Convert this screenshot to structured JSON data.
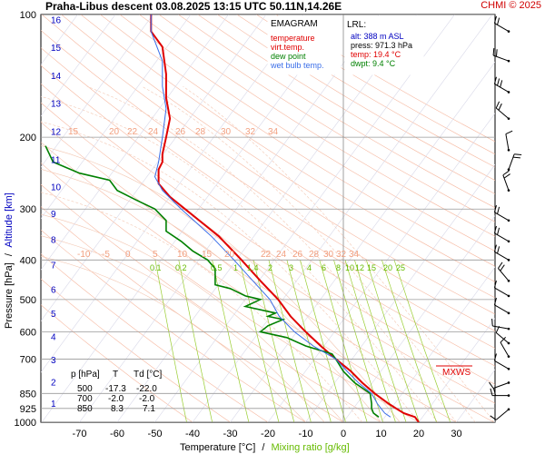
{
  "header": {
    "title": "Praha-Libus   descent   03.08.2025 13:15 UTC   50.11N,14.26E",
    "credit": "CHMI © 2025"
  },
  "legend": {
    "title": "EMAGRAM",
    "items": [
      {
        "label": "temperature",
        "color": "#e00000"
      },
      {
        "label": "virt.temp.",
        "color": "#e00000"
      },
      {
        "label": "dew point",
        "color": "#008000"
      },
      {
        "label": "wet bulb temp.",
        "color": "#3a6ee8"
      }
    ]
  },
  "lrl": {
    "title": "LRL:",
    "lines": [
      {
        "text": "alt: 388 m ASL",
        "color": "#0000c0"
      },
      {
        "text": "press: 971.3 hPa",
        "color": "#000000"
      },
      {
        "text": "temp: 19.4 °C",
        "color": "#e00000"
      },
      {
        "text": "dwpt: 9.4 °C",
        "color": "#008000"
      }
    ]
  },
  "table": {
    "headers": [
      "p [hPa]",
      "T",
      "Td [°C]"
    ],
    "rows": [
      [
        "500",
        "-17.3",
        "-22.0"
      ],
      [
        "700",
        "-2.0",
        "-2.0"
      ],
      [
        "850",
        "8.3",
        "7.1"
      ]
    ]
  },
  "axes": {
    "y_label_a": "Pressure [hPa]",
    "y_label_sep": "/",
    "y_label_b": "Altitude [km]",
    "x_label_a": "Temperature [°C]",
    "x_label_sep": "/",
    "x_label_b": "Mixing ratio [g/kg]"
  },
  "mxws_label": "MXWS",
  "chart_data": {
    "type": "line",
    "y_scale": "log-pressure",
    "ylim": [
      1000,
      100
    ],
    "xlim": [
      -80,
      40
    ],
    "x_ticks": [
      -70,
      -60,
      -50,
      -40,
      -30,
      -20,
      -10,
      0,
      10,
      20,
      30
    ],
    "pressure_ticks": [
      100,
      200,
      300,
      400,
      500,
      600,
      700,
      850,
      925,
      1000
    ],
    "altitude_km_ticks": [
      1,
      2,
      3,
      4,
      5,
      6,
      7,
      8,
      9,
      10,
      11,
      12,
      13,
      14,
      15,
      16
    ],
    "theta_labels_upper": [
      "15",
      "20",
      "22",
      "24",
      "26",
      "28",
      "30",
      "32",
      "34"
    ],
    "theta_labels_lower": [
      "-10",
      "-5",
      "0",
      "5",
      "10",
      "15",
      "20",
      "22",
      "24",
      "26",
      "28",
      "30",
      "32",
      "34"
    ],
    "mixing_ratio_labels": [
      "0.1",
      "0.2",
      "0.5",
      "1",
      "1.4",
      "2",
      "3",
      "4",
      "6",
      "8",
      "10",
      "12",
      "15",
      "20",
      "25"
    ],
    "series": [
      {
        "name": "temperature",
        "color": "#e00000",
        "points": [
          [
            1000,
            20
          ],
          [
            971,
            19
          ],
          [
            950,
            16
          ],
          [
            925,
            14
          ],
          [
            900,
            12
          ],
          [
            850,
            8.3
          ],
          [
            800,
            5
          ],
          [
            750,
            2
          ],
          [
            700,
            -2
          ],
          [
            650,
            -6
          ],
          [
            600,
            -10
          ],
          [
            550,
            -14
          ],
          [
            500,
            -17.3
          ],
          [
            450,
            -22
          ],
          [
            400,
            -27
          ],
          [
            350,
            -33
          ],
          [
            300,
            -42
          ],
          [
            280,
            -46
          ],
          [
            260,
            -49
          ],
          [
            240,
            -49
          ],
          [
            230,
            -48
          ],
          [
            220,
            -48
          ],
          [
            200,
            -47
          ],
          [
            180,
            -46
          ],
          [
            160,
            -47
          ],
          [
            150,
            -47
          ],
          [
            140,
            -47
          ],
          [
            120,
            -48
          ],
          [
            110,
            -51
          ],
          [
            100,
            -51
          ]
        ]
      },
      {
        "name": "dew point",
        "color": "#008000",
        "points": [
          [
            971,
            9.4
          ],
          [
            950,
            8
          ],
          [
            925,
            7.5
          ],
          [
            900,
            7.5
          ],
          [
            850,
            7.1
          ],
          [
            800,
            3
          ],
          [
            750,
            0
          ],
          [
            700,
            -2
          ],
          [
            680,
            -3
          ],
          [
            650,
            -10
          ],
          [
            620,
            -15
          ],
          [
            600,
            -22
          ],
          [
            580,
            -20
          ],
          [
            560,
            -16
          ],
          [
            550,
            -20
          ],
          [
            540,
            -18
          ],
          [
            520,
            -26
          ],
          [
            500,
            -22
          ],
          [
            490,
            -26
          ],
          [
            470,
            -30
          ],
          [
            460,
            -34
          ],
          [
            440,
            -34
          ],
          [
            420,
            -34
          ],
          [
            400,
            -36
          ],
          [
            380,
            -40
          ],
          [
            360,
            -43
          ],
          [
            340,
            -47
          ],
          [
            320,
            -47
          ],
          [
            300,
            -50
          ],
          [
            285,
            -55
          ],
          [
            270,
            -60
          ],
          [
            255,
            -62
          ],
          [
            245,
            -70
          ],
          [
            230,
            -77
          ],
          [
            210,
            -79
          ]
        ]
      },
      {
        "name": "wet bulb temp.",
        "color": "#3a6ee8",
        "points": [
          [
            971,
            12.5
          ],
          [
            950,
            11
          ],
          [
            925,
            10
          ],
          [
            900,
            9
          ],
          [
            850,
            7.5
          ],
          [
            800,
            4
          ],
          [
            750,
            1
          ],
          [
            700,
            -2
          ],
          [
            650,
            -8
          ],
          [
            600,
            -13
          ],
          [
            550,
            -17
          ],
          [
            500,
            -19.5
          ],
          [
            450,
            -24
          ],
          [
            400,
            -29
          ],
          [
            350,
            -35
          ],
          [
            300,
            -43
          ],
          [
            270,
            -48
          ],
          [
            250,
            -50
          ],
          [
            230,
            -49
          ],
          [
            200,
            -48
          ],
          [
            170,
            -47
          ],
          [
            150,
            -48
          ],
          [
            130,
            -48
          ],
          [
            110,
            -51
          ],
          [
            100,
            -51
          ]
        ]
      }
    ],
    "wind_barbs": [
      {
        "p": 110,
        "dir": 300,
        "kt": 15
      },
      {
        "p": 130,
        "dir": 290,
        "kt": 20
      },
      {
        "p": 155,
        "dir": 300,
        "kt": 25
      },
      {
        "p": 180,
        "dir": 310,
        "kt": 20
      },
      {
        "p": 215,
        "dir": 350,
        "kt": 10
      },
      {
        "p": 240,
        "dir": 20,
        "kt": 15
      },
      {
        "p": 270,
        "dir": 340,
        "kt": 15
      },
      {
        "p": 320,
        "dir": 300,
        "kt": 15
      },
      {
        "p": 360,
        "dir": 300,
        "kt": 20
      },
      {
        "p": 400,
        "dir": 300,
        "kt": 15
      },
      {
        "p": 450,
        "dir": 320,
        "kt": 15
      },
      {
        "p": 490,
        "dir": 300,
        "kt": 10
      },
      {
        "p": 540,
        "dir": 300,
        "kt": 10
      },
      {
        "p": 590,
        "dir": 280,
        "kt": 10
      },
      {
        "p": 640,
        "dir": 310,
        "kt": 10
      },
      {
        "p": 690,
        "dir": 330,
        "kt": 10
      },
      {
        "p": 740,
        "dir": 300,
        "kt": 5
      },
      {
        "p": 800,
        "dir": 250,
        "kt": 10
      },
      {
        "p": 860,
        "dir": 270,
        "kt": 15
      },
      {
        "p": 930,
        "dir": 230,
        "kt": 5
      }
    ]
  }
}
